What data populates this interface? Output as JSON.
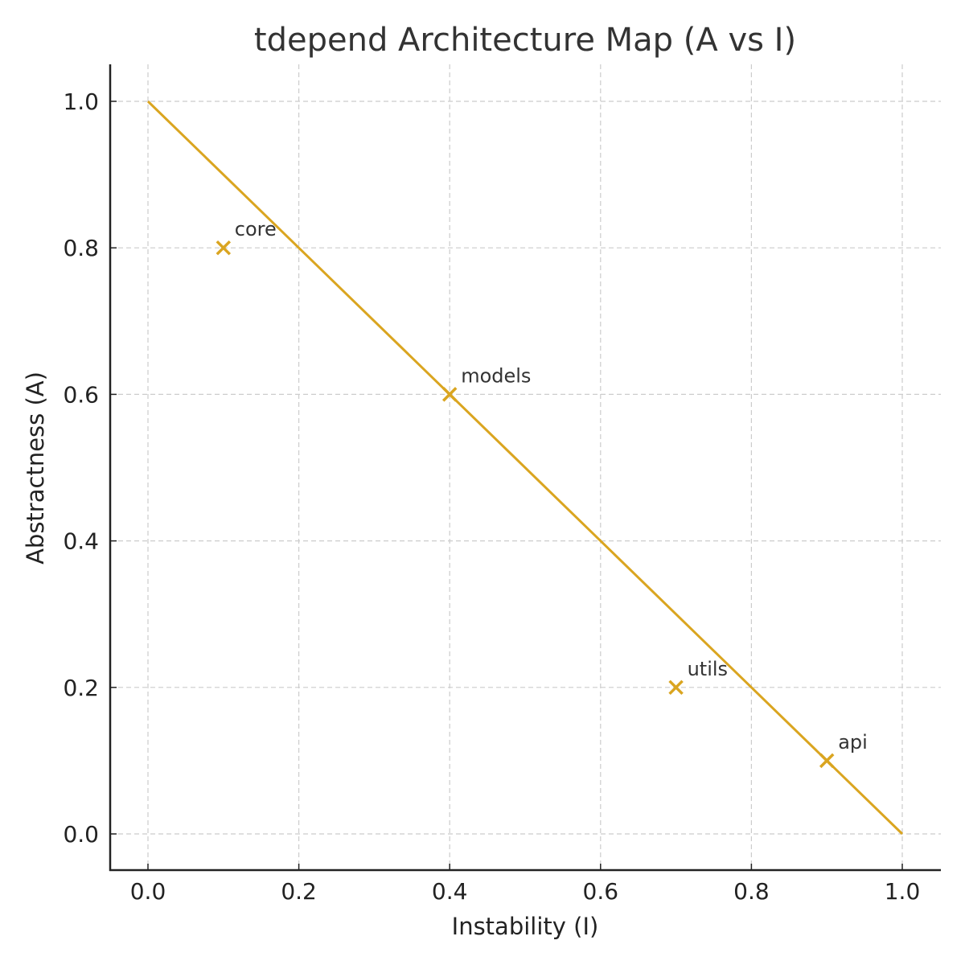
{
  "chart_data": {
    "type": "scatter",
    "title": "tdepend Architecture Map (A vs I)",
    "xlabel": "Instability (I)",
    "ylabel": "Abstractness (A)",
    "xlim": [
      -0.05,
      1.05
    ],
    "ylim": [
      -0.05,
      1.05
    ],
    "x_ticks": [
      "0.0",
      "0.2",
      "0.4",
      "0.6",
      "0.8",
      "1.0"
    ],
    "y_ticks": [
      "0.0",
      "0.2",
      "0.4",
      "0.6",
      "0.8",
      "1.0"
    ],
    "grid": true,
    "legend": null,
    "marker": "x",
    "color": "#DAA520",
    "main_sequence_line": {
      "x": [
        0.0,
        1.0
      ],
      "y": [
        1.0,
        0.0
      ]
    },
    "points": [
      {
        "label": "core",
        "x": 0.1,
        "y": 0.8
      },
      {
        "label": "models",
        "x": 0.4,
        "y": 0.6
      },
      {
        "label": "utils",
        "x": 0.7,
        "y": 0.2
      },
      {
        "label": "api",
        "x": 0.9,
        "y": 0.1
      }
    ]
  }
}
